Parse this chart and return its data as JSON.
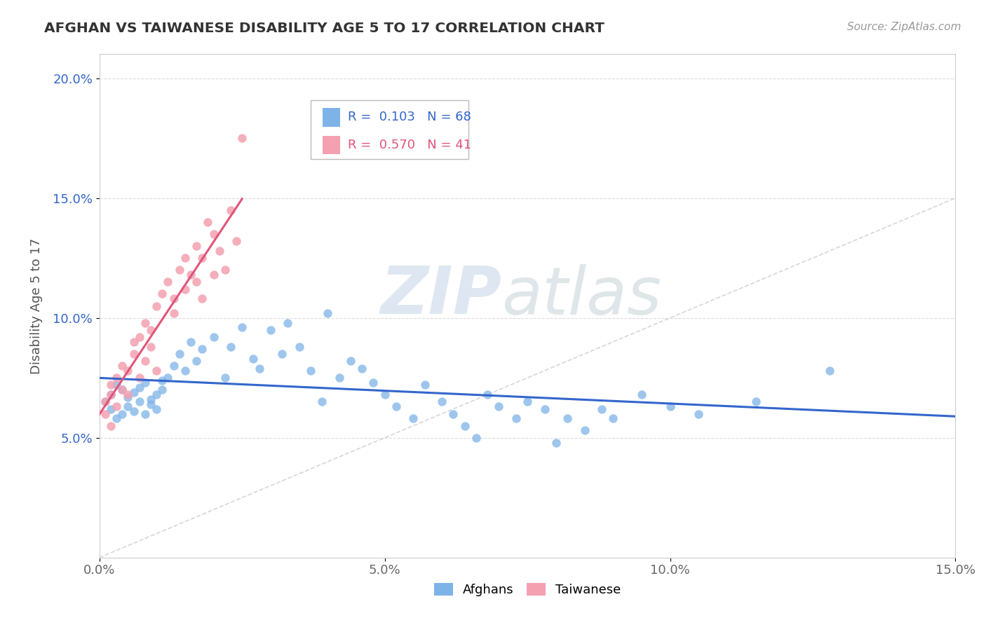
{
  "title": "AFGHAN VS TAIWANESE DISABILITY AGE 5 TO 17 CORRELATION CHART",
  "source_text": "Source: ZipAtlas.com",
  "ylabel": "Disability Age 5 to 17",
  "xlim": [
    0.0,
    0.15
  ],
  "ylim": [
    0.0,
    0.21
  ],
  "xtick_labels": [
    "0.0%",
    "5.0%",
    "10.0%",
    "15.0%"
  ],
  "xtick_vals": [
    0.0,
    0.05,
    0.1,
    0.15
  ],
  "ytick_labels": [
    "5.0%",
    "10.0%",
    "15.0%",
    "20.0%"
  ],
  "ytick_vals": [
    0.05,
    0.1,
    0.15,
    0.2
  ],
  "afghan_color": "#7EB3E8",
  "taiwanese_color": "#F4A0B0",
  "trend_afghan_color": "#3366CC",
  "trend_taiwanese_color": "#E0557A",
  "diagonal_color": "#CCCCCC",
  "R_afghan": 0.103,
  "N_afghan": 68,
  "R_taiwanese": 0.57,
  "N_taiwanese": 41,
  "legend_labels": [
    "Afghans",
    "Taiwanese"
  ],
  "watermark_zip": "ZIP",
  "watermark_atlas": "atlas",
  "afghan_x": [
    0.001,
    0.002,
    0.002,
    0.003,
    0.003,
    0.004,
    0.004,
    0.005,
    0.005,
    0.006,
    0.006,
    0.007,
    0.007,
    0.008,
    0.008,
    0.009,
    0.009,
    0.01,
    0.01,
    0.011,
    0.011,
    0.012,
    0.013,
    0.014,
    0.015,
    0.016,
    0.017,
    0.018,
    0.02,
    0.022,
    0.023,
    0.025,
    0.027,
    0.028,
    0.03,
    0.032,
    0.033,
    0.035,
    0.037,
    0.039,
    0.04,
    0.042,
    0.044,
    0.046,
    0.048,
    0.05,
    0.052,
    0.055,
    0.057,
    0.06,
    0.062,
    0.064,
    0.066,
    0.068,
    0.07,
    0.073,
    0.075,
    0.078,
    0.08,
    0.082,
    0.085,
    0.088,
    0.09,
    0.095,
    0.1,
    0.105,
    0.115,
    0.128
  ],
  "afghan_y": [
    0.065,
    0.062,
    0.068,
    0.058,
    0.072,
    0.06,
    0.07,
    0.063,
    0.067,
    0.061,
    0.069,
    0.065,
    0.071,
    0.06,
    0.073,
    0.064,
    0.066,
    0.062,
    0.068,
    0.07,
    0.074,
    0.075,
    0.08,
    0.085,
    0.078,
    0.09,
    0.082,
    0.087,
    0.092,
    0.075,
    0.088,
    0.096,
    0.083,
    0.079,
    0.095,
    0.085,
    0.098,
    0.088,
    0.078,
    0.065,
    0.102,
    0.075,
    0.082,
    0.079,
    0.073,
    0.068,
    0.063,
    0.058,
    0.072,
    0.065,
    0.06,
    0.055,
    0.05,
    0.068,
    0.063,
    0.058,
    0.065,
    0.062,
    0.048,
    0.058,
    0.053,
    0.062,
    0.058,
    0.068,
    0.063,
    0.06,
    0.065,
    0.078
  ],
  "taiwanese_x": [
    0.001,
    0.001,
    0.002,
    0.002,
    0.002,
    0.003,
    0.003,
    0.004,
    0.004,
    0.005,
    0.005,
    0.006,
    0.006,
    0.007,
    0.007,
    0.008,
    0.008,
    0.009,
    0.009,
    0.01,
    0.01,
    0.011,
    0.012,
    0.013,
    0.013,
    0.014,
    0.015,
    0.015,
    0.016,
    0.017,
    0.017,
    0.018,
    0.018,
    0.019,
    0.02,
    0.02,
    0.021,
    0.022,
    0.023,
    0.024,
    0.025
  ],
  "taiwanese_y": [
    0.065,
    0.06,
    0.068,
    0.055,
    0.072,
    0.063,
    0.075,
    0.07,
    0.08,
    0.068,
    0.078,
    0.085,
    0.09,
    0.075,
    0.092,
    0.082,
    0.098,
    0.088,
    0.095,
    0.078,
    0.105,
    0.11,
    0.115,
    0.102,
    0.108,
    0.12,
    0.112,
    0.125,
    0.118,
    0.13,
    0.115,
    0.125,
    0.108,
    0.14,
    0.118,
    0.135,
    0.128,
    0.12,
    0.145,
    0.132,
    0.175
  ]
}
